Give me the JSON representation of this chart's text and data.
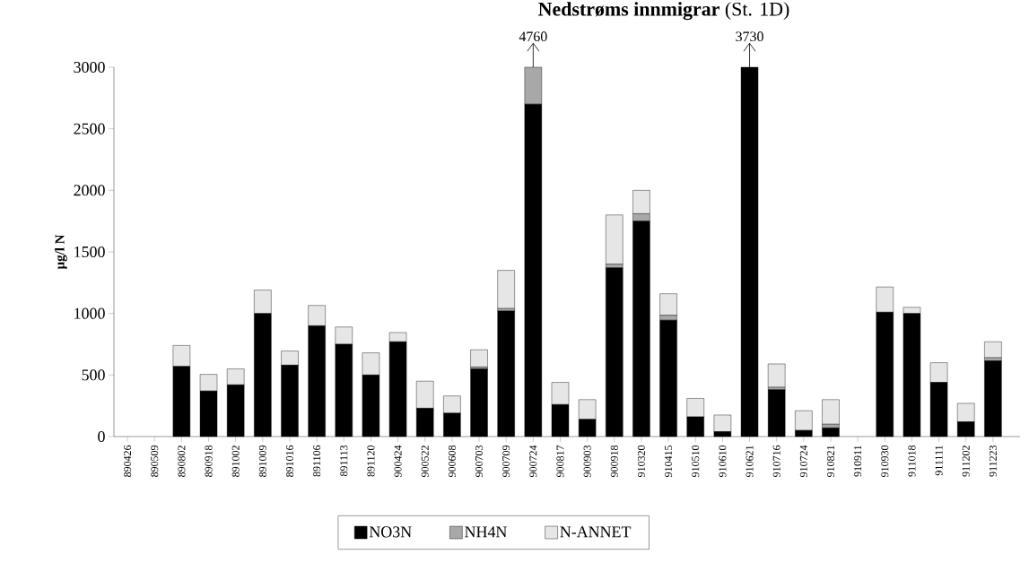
{
  "chart_data": {
    "type": "bar",
    "stacked": true,
    "title": "**Nedstrøms innmigrar** (St. 1D)",
    "ylabel": "µg/l N",
    "categories": [
      "890426",
      "890509",
      "890802",
      "890918",
      "891002",
      "891009",
      "891016",
      "891106",
      "891113",
      "891120",
      "900424",
      "900522",
      "900608",
      "900703",
      "900709",
      "900724",
      "900817",
      "900903",
      "900918",
      "910320",
      "910415",
      "910510",
      "910610",
      "910621",
      "910716",
      "910724",
      "910821",
      "910911",
      "910930",
      "911018",
      "911111",
      "911202",
      "911223"
    ],
    "series": [
      {
        "name": "NO3N",
        "color": "#000000",
        "values": [
          0,
          0,
          570,
          370,
          420,
          1000,
          580,
          900,
          750,
          500,
          770,
          230,
          190,
          550,
          1020,
          2700,
          260,
          140,
          1370,
          1750,
          945,
          160,
          40,
          3000,
          380,
          50,
          70,
          0,
          1010,
          1000,
          440,
          120,
          615
        ]
      },
      {
        "name": "NH4N",
        "color": "#a8a8a8",
        "values": [
          0,
          0,
          0,
          0,
          0,
          0,
          0,
          0,
          0,
          0,
          0,
          0,
          0,
          15,
          20,
          300,
          0,
          0,
          30,
          60,
          40,
          0,
          0,
          0,
          20,
          0,
          30,
          0,
          0,
          0,
          0,
          0,
          25
        ]
      },
      {
        "name": "N-ANNET",
        "color": "#e6e6e6",
        "values": [
          0,
          0,
          170,
          135,
          130,
          190,
          115,
          165,
          140,
          180,
          75,
          220,
          140,
          140,
          310,
          0,
          180,
          160,
          400,
          190,
          175,
          150,
          135,
          0,
          190,
          160,
          200,
          0,
          205,
          50,
          160,
          150,
          130
        ]
      }
    ],
    "ylim": [
      0,
      3000
    ],
    "yticks": [
      0,
      500,
      1000,
      1500,
      2000,
      2500,
      3000
    ],
    "legend": "bottom",
    "grid": false,
    "marker": "none",
    "annotations": [
      {
        "text": "4760",
        "x": "900724",
        "y": 3000
      },
      {
        "text": "3730",
        "x": "910621",
        "y": 3000
      }
    ]
  }
}
